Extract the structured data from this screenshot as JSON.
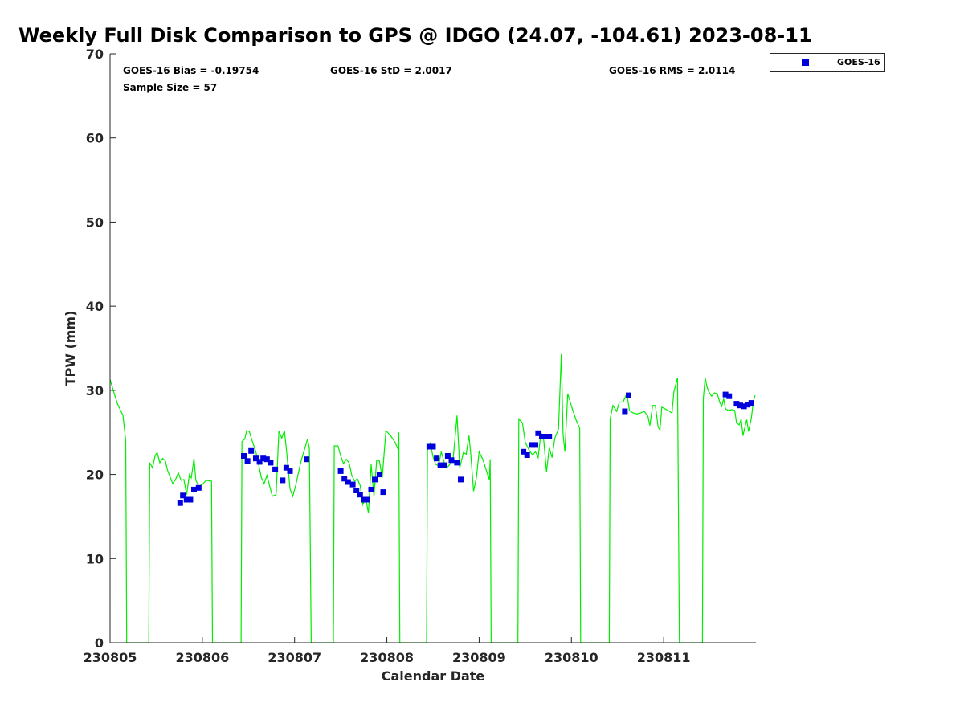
{
  "chart_data": {
    "type": "scatter",
    "title": "Weekly Full Disk Comparison to GPS @ IDGO (24.07, -104.61) 2023-08-11",
    "xlabel": "Calendar Date",
    "ylabel": "TPW (mm)",
    "xlim": [
      "230805",
      "230812"
    ],
    "ylim": [
      0,
      70
    ],
    "x_ticks": [
      "230805",
      "230806",
      "230807",
      "230808",
      "230809",
      "230810",
      "230811"
    ],
    "y_ticks": [
      0,
      10,
      20,
      30,
      40,
      50,
      60,
      70
    ],
    "grid": false,
    "legend_position": "top-right, outside plot",
    "stats": {
      "bias": "GOES-16 Bias = -0.19754",
      "std": "GOES-16 StD = 2.0017",
      "rms": "GOES-16 RMS = 2.0114",
      "sample": "Sample Size = 57"
    },
    "series": [
      {
        "name": "GOES-16",
        "kind": "scatter",
        "color": "#0000dd",
        "points": [
          [
            230805.76,
            16.6
          ],
          [
            230805.79,
            17.5
          ],
          [
            230805.83,
            17.0
          ],
          [
            230805.87,
            17.0
          ],
          [
            230805.91,
            18.2
          ],
          [
            230805.96,
            18.4
          ],
          [
            230806.45,
            22.2
          ],
          [
            230806.49,
            21.6
          ],
          [
            230806.53,
            22.8
          ],
          [
            230806.58,
            21.9
          ],
          [
            230806.62,
            21.5
          ],
          [
            230806.66,
            21.9
          ],
          [
            230806.7,
            21.8
          ],
          [
            230806.74,
            21.4
          ],
          [
            230806.79,
            20.6
          ],
          [
            230806.87,
            19.3
          ],
          [
            230806.91,
            20.8
          ],
          [
            230806.95,
            20.4
          ],
          [
            230807.13,
            21.8
          ],
          [
            230807.5,
            20.4
          ],
          [
            230807.54,
            19.5
          ],
          [
            230807.58,
            19.1
          ],
          [
            230807.63,
            18.8
          ],
          [
            230807.67,
            18.1
          ],
          [
            230807.71,
            17.6
          ],
          [
            230807.75,
            17.0
          ],
          [
            230807.79,
            17.0
          ],
          [
            230807.83,
            18.2
          ],
          [
            230807.87,
            19.4
          ],
          [
            230807.92,
            20.0
          ],
          [
            230807.96,
            17.9
          ],
          [
            230808.46,
            23.3
          ],
          [
            230808.5,
            23.3
          ],
          [
            230808.54,
            21.9
          ],
          [
            230808.58,
            21.1
          ],
          [
            230808.62,
            21.1
          ],
          [
            230808.66,
            22.2
          ],
          [
            230808.7,
            21.7
          ],
          [
            230808.76,
            21.4
          ],
          [
            230808.8,
            19.4
          ],
          [
            230809.48,
            22.7
          ],
          [
            230809.52,
            22.3
          ],
          [
            230809.57,
            23.5
          ],
          [
            230809.61,
            23.5
          ],
          [
            230809.64,
            24.9
          ],
          [
            230809.68,
            24.5
          ],
          [
            230809.72,
            24.5
          ],
          [
            230809.76,
            24.5
          ],
          [
            230810.58,
            27.5
          ],
          [
            230810.62,
            29.4
          ],
          [
            230811.67,
            29.5
          ],
          [
            230811.71,
            29.3
          ],
          [
            230811.79,
            28.4
          ],
          [
            230811.83,
            28.2
          ],
          [
            230811.87,
            28.1
          ],
          [
            230811.91,
            28.3
          ],
          [
            230811.95,
            28.5
          ]
        ]
      },
      {
        "kind": "line",
        "color": "#00ee00",
        "points": [
          [
            230805.0,
            31.3
          ],
          [
            230805.04,
            29.8
          ],
          [
            230805.08,
            28.4
          ],
          [
            230805.14,
            27.0
          ],
          [
            230805.17,
            24.0
          ],
          [
            230805.18,
            0
          ],
          [
            230805.42,
            0
          ],
          [
            230805.43,
            21.4
          ],
          [
            230805.46,
            20.8
          ],
          [
            230805.49,
            22.3
          ],
          [
            230805.51,
            22.6
          ],
          [
            230805.54,
            21.4
          ],
          [
            230805.57,
            21.9
          ],
          [
            230805.6,
            21.6
          ],
          [
            230805.62,
            20.6
          ],
          [
            230805.65,
            19.7
          ],
          [
            230805.68,
            18.9
          ],
          [
            230805.71,
            19.4
          ],
          [
            230805.74,
            20.2
          ],
          [
            230805.77,
            19.3
          ],
          [
            230805.8,
            19.4
          ],
          [
            230805.83,
            17.6
          ],
          [
            230805.86,
            20.0
          ],
          [
            230805.88,
            19.6
          ],
          [
            230805.91,
            21.9
          ],
          [
            230805.93,
            19.3
          ],
          [
            230805.96,
            18.6
          ],
          [
            230806.0,
            18.8
          ],
          [
            230806.04,
            19.3
          ],
          [
            230806.1,
            19.2
          ],
          [
            230806.11,
            0
          ],
          [
            230806.42,
            0
          ],
          [
            230806.43,
            23.9
          ],
          [
            230806.46,
            24.2
          ],
          [
            230806.48,
            25.2
          ],
          [
            230806.51,
            25.1
          ],
          [
            230806.54,
            24.0
          ],
          [
            230806.58,
            22.7
          ],
          [
            230806.61,
            21.2
          ],
          [
            230806.64,
            19.6
          ],
          [
            230806.67,
            18.9
          ],
          [
            230806.7,
            19.9
          ],
          [
            230806.73,
            18.6
          ],
          [
            230806.76,
            17.4
          ],
          [
            230806.8,
            17.6
          ],
          [
            230806.83,
            25.2
          ],
          [
            230806.86,
            24.3
          ],
          [
            230806.89,
            25.2
          ],
          [
            230806.92,
            22.0
          ],
          [
            230806.95,
            18.3
          ],
          [
            230806.98,
            17.4
          ],
          [
            230807.01,
            18.6
          ],
          [
            230807.04,
            20.1
          ],
          [
            230807.07,
            21.6
          ],
          [
            230807.1,
            22.7
          ],
          [
            230807.14,
            24.2
          ],
          [
            230807.16,
            23.1
          ],
          [
            230807.18,
            0
          ],
          [
            230807.42,
            0
          ],
          [
            230807.43,
            23.4
          ],
          [
            230807.47,
            23.4
          ],
          [
            230807.5,
            22.2
          ],
          [
            230807.53,
            21.3
          ],
          [
            230807.56,
            21.8
          ],
          [
            230807.59,
            21.4
          ],
          [
            230807.62,
            19.9
          ],
          [
            230807.65,
            19.2
          ],
          [
            230807.68,
            19.5
          ],
          [
            230807.71,
            18.7
          ],
          [
            230807.74,
            16.4
          ],
          [
            230807.77,
            17.2
          ],
          [
            230807.8,
            15.4
          ],
          [
            230807.83,
            21.2
          ],
          [
            230807.86,
            17.4
          ],
          [
            230807.89,
            21.7
          ],
          [
            230807.92,
            21.6
          ],
          [
            230807.95,
            19.6
          ],
          [
            230807.99,
            25.2
          ],
          [
            230808.04,
            24.6
          ],
          [
            230808.09,
            23.8
          ],
          [
            230808.12,
            23.0
          ],
          [
            230808.13,
            25.0
          ],
          [
            230808.14,
            0
          ],
          [
            230808.43,
            0
          ],
          [
            230808.44,
            22.9
          ],
          [
            230808.47,
            23.7
          ],
          [
            230808.5,
            22.1
          ],
          [
            230808.53,
            21.2
          ],
          [
            230808.56,
            21.0
          ],
          [
            230808.59,
            22.7
          ],
          [
            230808.62,
            21.5
          ],
          [
            230808.65,
            20.8
          ],
          [
            230808.69,
            21.3
          ],
          [
            230808.72,
            22.1
          ],
          [
            230808.76,
            27.0
          ],
          [
            230808.79,
            20.8
          ],
          [
            230808.83,
            22.6
          ],
          [
            230808.86,
            22.4
          ],
          [
            230808.89,
            24.6
          ],
          [
            230808.91,
            22.3
          ],
          [
            230808.94,
            18.0
          ],
          [
            230808.97,
            19.6
          ],
          [
            230809.0,
            22.7
          ],
          [
            230809.04,
            21.8
          ],
          [
            230809.08,
            20.4
          ],
          [
            230809.11,
            19.4
          ],
          [
            230809.12,
            21.8
          ],
          [
            230809.13,
            0
          ],
          [
            230809.42,
            0
          ],
          [
            230809.43,
            26.6
          ],
          [
            230809.47,
            26.1
          ],
          [
            230809.5,
            23.8
          ],
          [
            230809.54,
            22.9
          ],
          [
            230809.58,
            22.3
          ],
          [
            230809.61,
            22.7
          ],
          [
            230809.64,
            22.0
          ],
          [
            230809.67,
            25.0
          ],
          [
            230809.7,
            24.1
          ],
          [
            230809.73,
            20.3
          ],
          [
            230809.76,
            23.2
          ],
          [
            230809.79,
            22.0
          ],
          [
            230809.82,
            24.3
          ],
          [
            230809.86,
            25.4
          ],
          [
            230809.89,
            34.3
          ],
          [
            230809.91,
            24.8
          ],
          [
            230809.93,
            22.7
          ],
          [
            230809.96,
            29.6
          ],
          [
            230810.01,
            27.8
          ],
          [
            230810.05,
            26.5
          ],
          [
            230810.09,
            25.5
          ],
          [
            230810.1,
            0
          ],
          [
            230810.41,
            0
          ],
          [
            230810.42,
            26.6
          ],
          [
            230810.45,
            28.2
          ],
          [
            230810.49,
            27.5
          ],
          [
            230810.52,
            28.6
          ],
          [
            230810.56,
            28.6
          ],
          [
            230810.6,
            29.6
          ],
          [
            230810.63,
            27.6
          ],
          [
            230810.67,
            27.3
          ],
          [
            230810.71,
            27.2
          ],
          [
            230810.75,
            27.3
          ],
          [
            230810.79,
            27.5
          ],
          [
            230810.83,
            26.9
          ],
          [
            230810.85,
            25.8
          ],
          [
            230810.88,
            28.2
          ],
          [
            230810.91,
            28.2
          ],
          [
            230810.94,
            25.6
          ],
          [
            230810.96,
            25.3
          ],
          [
            230810.98,
            28.0
          ],
          [
            230811.03,
            27.7
          ],
          [
            230811.09,
            27.3
          ],
          [
            230811.11,
            29.8
          ],
          [
            230811.15,
            31.5
          ],
          [
            230811.17,
            0
          ],
          [
            230811.42,
            0
          ],
          [
            230811.43,
            29.0
          ],
          [
            230811.45,
            31.5
          ],
          [
            230811.47,
            30.4
          ],
          [
            230811.49,
            29.8
          ],
          [
            230811.52,
            29.3
          ],
          [
            230811.55,
            29.7
          ],
          [
            230811.58,
            29.6
          ],
          [
            230811.61,
            28.5
          ],
          [
            230811.63,
            28.1
          ],
          [
            230811.65,
            29.0
          ],
          [
            230811.67,
            27.8
          ],
          [
            230811.7,
            27.6
          ],
          [
            230811.74,
            27.7
          ],
          [
            230811.77,
            27.6
          ],
          [
            230811.79,
            26.1
          ],
          [
            230811.82,
            25.9
          ],
          [
            230811.84,
            26.6
          ],
          [
            230811.86,
            24.6
          ],
          [
            230811.88,
            25.6
          ],
          [
            230811.9,
            26.5
          ],
          [
            230811.92,
            25.1
          ],
          [
            230811.95,
            26.7
          ],
          [
            230811.97,
            28.6
          ],
          [
            230811.99,
            29.4
          ]
        ]
      }
    ]
  }
}
